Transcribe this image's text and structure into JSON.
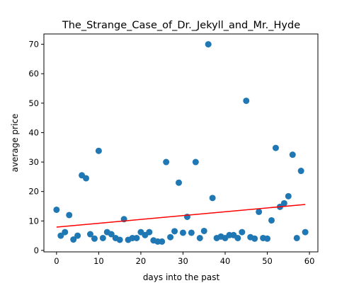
{
  "chart_data": {
    "type": "scatter",
    "title": "The_Strange_Case_of_Dr._Jekyll_and_Mr._Hyde",
    "xlabel": "days into the past",
    "ylabel": "average price",
    "xlim": [
      -3,
      62
    ],
    "ylim": [
      -0.5,
      73.5
    ],
    "xticks": [
      0,
      10,
      20,
      30,
      40,
      50,
      60
    ],
    "yticks": [
      0,
      10,
      20,
      30,
      40,
      50,
      60,
      70
    ],
    "grid": false,
    "point_color": "#1f77b4",
    "trend_color": "#ff0000",
    "points": [
      [
        0,
        13.8
      ],
      [
        1,
        5.0
      ],
      [
        2,
        6.2
      ],
      [
        3,
        12.0
      ],
      [
        4,
        3.7
      ],
      [
        5,
        5.0
      ],
      [
        6,
        25.5
      ],
      [
        7,
        24.5
      ],
      [
        8,
        5.5
      ],
      [
        9,
        4.0
      ],
      [
        10,
        33.8
      ],
      [
        11,
        4.2
      ],
      [
        12,
        6.2
      ],
      [
        13,
        5.5
      ],
      [
        14,
        4.2
      ],
      [
        15,
        3.6
      ],
      [
        16,
        10.6
      ],
      [
        17,
        3.6
      ],
      [
        18,
        4.2
      ],
      [
        19,
        4.2
      ],
      [
        20,
        6.2
      ],
      [
        21,
        5.2
      ],
      [
        22,
        6.2
      ],
      [
        23,
        3.4
      ],
      [
        24,
        3.0
      ],
      [
        25,
        3.0
      ],
      [
        26,
        30.0
      ],
      [
        27,
        4.5
      ],
      [
        28,
        6.5
      ],
      [
        29,
        23.0
      ],
      [
        30,
        6.0
      ],
      [
        31,
        11.4
      ],
      [
        32,
        6.0
      ],
      [
        33,
        30.0
      ],
      [
        34,
        4.2
      ],
      [
        35,
        6.6
      ],
      [
        36,
        70.0
      ],
      [
        37,
        17.8
      ],
      [
        38,
        4.2
      ],
      [
        39,
        4.7
      ],
      [
        40,
        4.2
      ],
      [
        41,
        5.2
      ],
      [
        42,
        5.2
      ],
      [
        43,
        4.2
      ],
      [
        44,
        6.2
      ],
      [
        45,
        50.8
      ],
      [
        46,
        4.5
      ],
      [
        47,
        4.0
      ],
      [
        48,
        13.1
      ],
      [
        49,
        4.2
      ],
      [
        50,
        4.0
      ],
      [
        51,
        10.2
      ],
      [
        52,
        34.8
      ],
      [
        53,
        14.8
      ],
      [
        54,
        16.0
      ],
      [
        55,
        18.4
      ],
      [
        56,
        32.5
      ],
      [
        57,
        4.2
      ],
      [
        58,
        27.0
      ],
      [
        59,
        6.2
      ]
    ],
    "trendline": {
      "x": [
        0,
        59
      ],
      "y": [
        7.9,
        15.6
      ]
    }
  }
}
